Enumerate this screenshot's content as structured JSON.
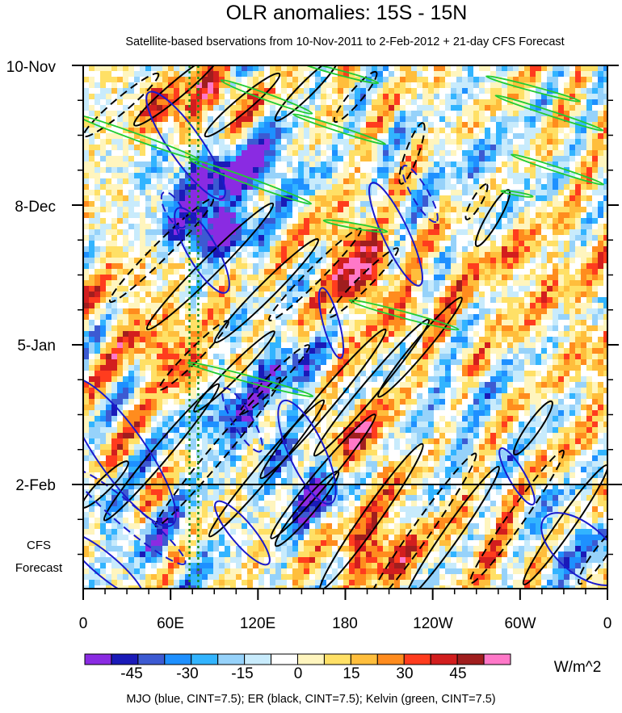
{
  "chart_data": {
    "type": "heatmap",
    "title": "OLR anomalies: 15S - 15N",
    "subtitle": "Satellite-based bservations from 10-Nov-2011 to 2-Feb-2012 + 21-day CFS Forecast",
    "x_tick_labels": [
      "0",
      "60E",
      "120E",
      "180",
      "120W",
      "60W",
      "0"
    ],
    "x_tick_longitudes": [
      0,
      60,
      120,
      180,
      240,
      300,
      360
    ],
    "xlim": [
      0,
      360
    ],
    "y_tick_labels": [
      "10-Nov",
      "8-Dec",
      "5-Jan",
      "2-Feb"
    ],
    "y_tick_days": [
      0,
      28,
      56,
      84
    ],
    "ylim_days": [
      0,
      105
    ],
    "forecast_start_day": 84,
    "forecast_label_line1": "CFS",
    "forecast_label_line2": "Forecast",
    "units_label": "W/m^2",
    "colorbar_levels": [
      -60,
      -52.5,
      -45,
      -37.5,
      -30,
      -22.5,
      -15,
      -7.5,
      0,
      7.5,
      15,
      22.5,
      30,
      37.5,
      45,
      52.5,
      60
    ],
    "colorbar_tick_labels": [
      "-45",
      "-30",
      "-15",
      "0",
      "15",
      "30",
      "45"
    ],
    "colorbar_tick_values": [
      -45,
      -30,
      -15,
      0,
      15,
      30,
      45
    ],
    "colorbar_colors": [
      "#8a2be2",
      "#1a1ab8",
      "#3c5ad2",
      "#1e90ff",
      "#32b4ff",
      "#96d2fa",
      "#c8ebfc",
      "#ffffff",
      "#fff5be",
      "#ffe066",
      "#ffbe3c",
      "#ff8c1e",
      "#ff3c1e",
      "#d21e1e",
      "#a01e1e",
      "#ff78c8"
    ],
    "footer": "MJO (blue, CINT=7.5); ER (black, CINT=7.5); Kelvin (green, CINT=7.5)",
    "mjo_color": "#1a1acc",
    "er_color": "#000000",
    "kelvin_color": "#22cc33",
    "reference_line_color": "#1a8a1a",
    "reference_longitudes": [
      73,
      79
    ]
  }
}
